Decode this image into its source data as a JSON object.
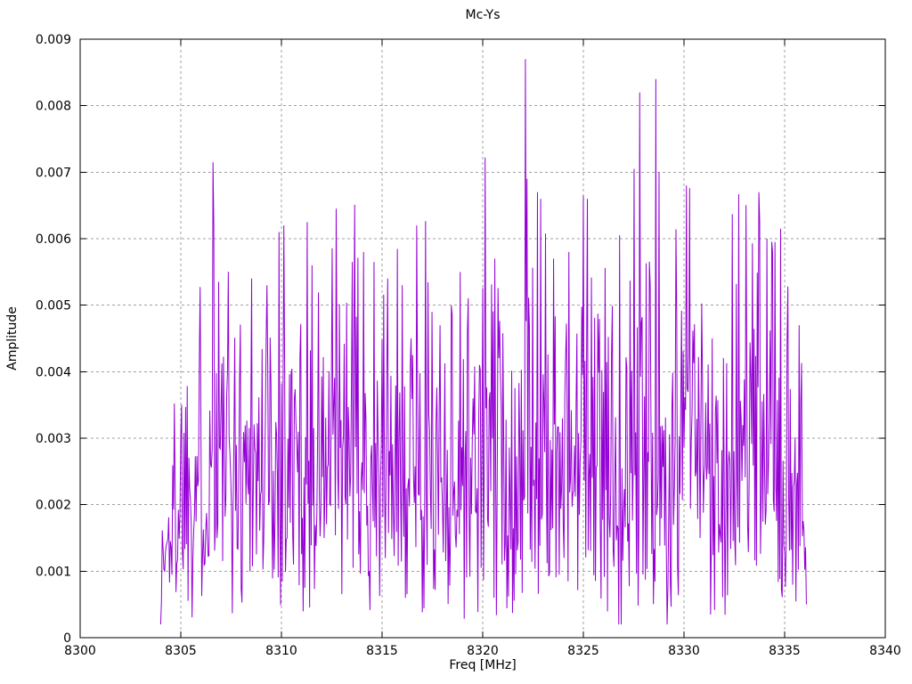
{
  "chart_data": {
    "type": "line",
    "title": "Mc-Ys",
    "xlabel": "Freq [MHz]",
    "ylabel": "Amplitude",
    "xlim": [
      8300,
      8340
    ],
    "ylim": [
      0,
      0.009
    ],
    "x_ticks": [
      8300,
      8305,
      8310,
      8315,
      8320,
      8325,
      8330,
      8335,
      8340
    ],
    "x_tick_labels": [
      "8300",
      "8305",
      "8310",
      "8315",
      "8320",
      "8325",
      "8330",
      "8335",
      "8340"
    ],
    "y_ticks": [
      0,
      0.001,
      0.002,
      0.003,
      0.004,
      0.005,
      0.006,
      0.007,
      0.008,
      0.009
    ],
    "y_tick_labels": [
      "0",
      "0.001",
      "0.002",
      "0.003",
      "0.004",
      "0.005",
      "0.006",
      "0.007",
      "0.008",
      "0.009"
    ],
    "grid": true,
    "grid_style": "dashed",
    "legend": "none",
    "line_color": "#9400d3",
    "grid_color": "#a0a0a0",
    "axis_color": "#000000",
    "background_color": "#ffffff",
    "series": [
      {
        "name": "Mc-Ys",
        "x_start": 8304.0,
        "x_end": 8336.1,
        "x_step": 0.04,
        "noise": {
          "distribution": "rayleigh",
          "sigma": 0.0021,
          "seed": 1337,
          "min": 0.0002,
          "baseline_cap": 0.0066
        },
        "envelope": {
          "ramp_in_end": 8305.2,
          "ramp_in_scale": 0.38,
          "ramp_out_start": 8335.4,
          "ramp_out_scale": 0.55
        },
        "endpoint_values": {
          "first": 0.0002,
          "last": 0.0005
        },
        "major_peaks": [
          [
            8305.05,
            0.0035
          ],
          [
            8306.6,
            0.00715
          ],
          [
            8306.65,
            0.0062
          ],
          [
            8306.9,
            0.00535
          ],
          [
            8308.5,
            0.0054
          ],
          [
            8309.3,
            0.0053
          ],
          [
            8309.9,
            0.0061
          ],
          [
            8310.1,
            0.0062
          ],
          [
            8311.5,
            0.0056
          ],
          [
            8312.7,
            0.00645
          ],
          [
            8313.5,
            0.00565
          ],
          [
            8314.6,
            0.00565
          ],
          [
            8315.3,
            0.0054
          ],
          [
            8316.0,
            0.0053
          ],
          [
            8316.7,
            0.0062
          ],
          [
            8317.9,
            0.0047
          ],
          [
            8318.9,
            0.0055
          ],
          [
            8320.1,
            0.00722
          ],
          [
            8320.6,
            0.0057
          ],
          [
            8322.1,
            0.0087
          ],
          [
            8322.2,
            0.0069
          ],
          [
            8322.7,
            0.0067
          ],
          [
            8322.9,
            0.0066
          ],
          [
            8323.5,
            0.0057
          ],
          [
            8324.3,
            0.0058
          ],
          [
            8325.0,
            0.00665
          ],
          [
            8325.2,
            0.0066
          ],
          [
            8326.8,
            0.00605
          ],
          [
            8327.5,
            0.00705
          ],
          [
            8327.8,
            0.0082
          ],
          [
            8328.6,
            0.0084
          ],
          [
            8328.75,
            0.007
          ],
          [
            8329.6,
            0.00614
          ],
          [
            8330.1,
            0.0068
          ],
          [
            8330.3,
            0.00676
          ],
          [
            8331.4,
            0.0045
          ],
          [
            8332.4,
            0.00637
          ],
          [
            8332.7,
            0.00667
          ],
          [
            8333.4,
            0.00593
          ],
          [
            8333.7,
            0.0067
          ],
          [
            8334.1,
            0.006
          ],
          [
            8334.4,
            0.0058
          ],
          [
            8334.5,
            0.00595
          ],
          [
            8335.7,
            0.0047
          ],
          [
            8335.85,
            0.00413
          ]
        ]
      }
    ]
  }
}
